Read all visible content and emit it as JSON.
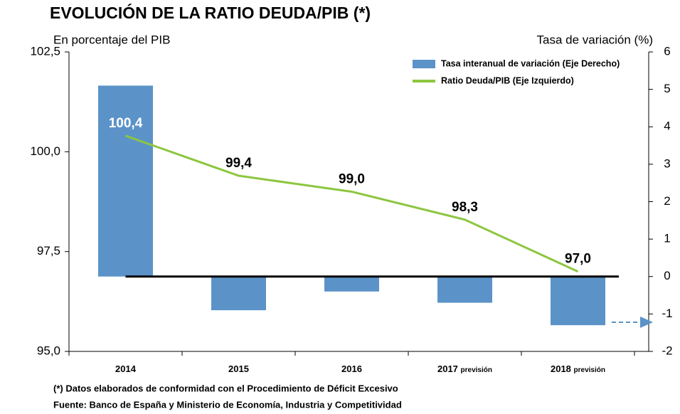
{
  "chart_data": {
    "type": "bar_line",
    "title": "EVOLUCIÓN DE LA RATIO DEUDA/PIB (*)",
    "y_label": "En porcentaje del PIB",
    "y2_label": "Tasa de variación (%)",
    "categories": [
      "2014",
      "2015",
      "2016",
      "2017",
      "2018"
    ],
    "category_notes": [
      null,
      null,
      null,
      "previsión",
      "previsión"
    ],
    "series": [
      {
        "name": "Tasa interanual de variación (Eje Derecho)",
        "type": "bar",
        "axis": "y2",
        "color": "#5b93c8",
        "values": [
          5.1,
          -0.9,
          -0.4,
          -0.7,
          -1.3
        ]
      },
      {
        "name": "Ratio Deuda/PIB (Eje Izquierdo)",
        "type": "line",
        "color": "#8dc63f",
        "values": [
          100.4,
          99.4,
          99.0,
          98.3,
          97.0
        ],
        "value_labels": [
          "100,4",
          "99,4",
          "99,0",
          "98,3",
          "97,0"
        ]
      }
    ],
    "ylim": [
      95.0,
      102.5
    ],
    "yticks": [
      {
        "value": 95.0,
        "label": "95,0"
      },
      {
        "value": 97.5,
        "label": "97,5"
      },
      {
        "value": 100.0,
        "label": "100,0"
      },
      {
        "value": 102.5,
        "label": "102,5"
      }
    ],
    "y2lim": [
      -2,
      6
    ],
    "y2ticks": [
      -2,
      -1,
      0,
      1,
      2,
      3,
      4,
      5,
      6
    ],
    "legend": "top-right",
    "notes": [
      "(*) Datos elaborados de conformidad con el Procedimiento de Déficit Excesivo",
      "Fuente: Banco de España y Ministerio de Economía, Industria y Competitividad"
    ]
  }
}
